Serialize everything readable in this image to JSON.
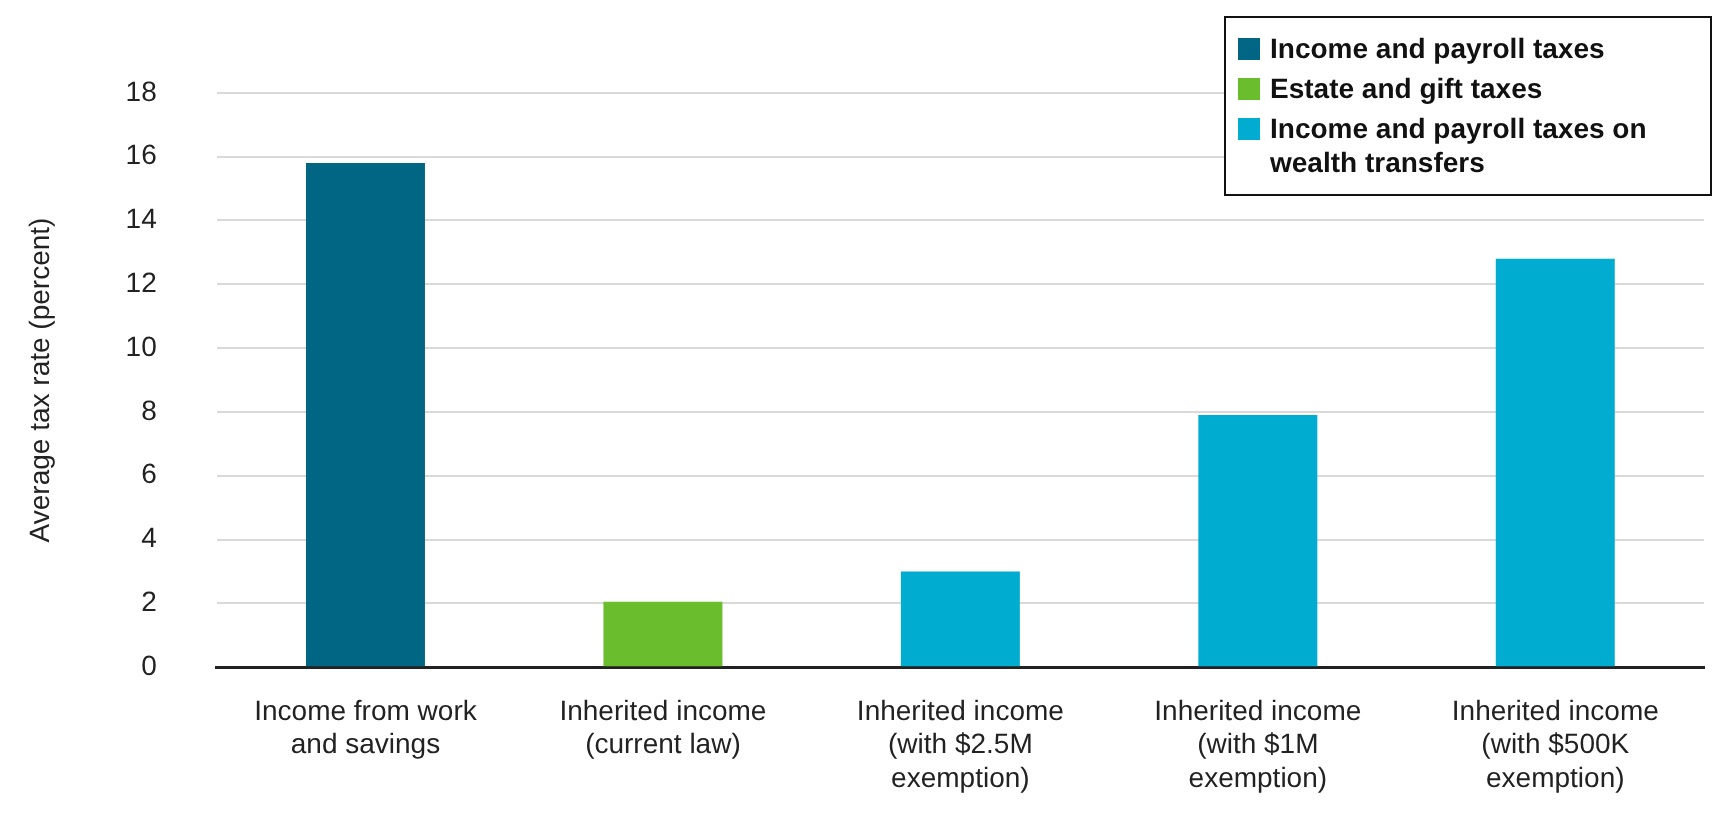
{
  "chart_data": {
    "type": "bar",
    "stacked": true,
    "ylabel": "Average tax rate (percent)",
    "categories": [
      "Income from work\nand savings",
      "Inherited income\n(current law)",
      "Inherited income\n(with $2.5M\nexemption)",
      "Inherited income\n(with $1M\nexemption)",
      "Inherited income\n(with $500K\nexemption)"
    ],
    "series": [
      {
        "name": "Income and payroll taxes",
        "color": "#006683",
        "values": [
          15.8,
          null,
          null,
          null,
          null
        ]
      },
      {
        "name": "Estate and gift taxes",
        "color": "#6abd2c",
        "values": [
          null,
          2.05,
          null,
          null,
          null
        ]
      },
      {
        "name": "Income and payroll taxes on wealth transfers",
        "color": "#00acd0",
        "values": [
          null,
          null,
          3.0,
          7.9,
          12.8
        ]
      }
    ],
    "ylim": [
      0,
      18
    ],
    "yticks": [
      0,
      2,
      4,
      6,
      8,
      10,
      12,
      14,
      16,
      18
    ],
    "grid": "y",
    "legend": "top right"
  }
}
